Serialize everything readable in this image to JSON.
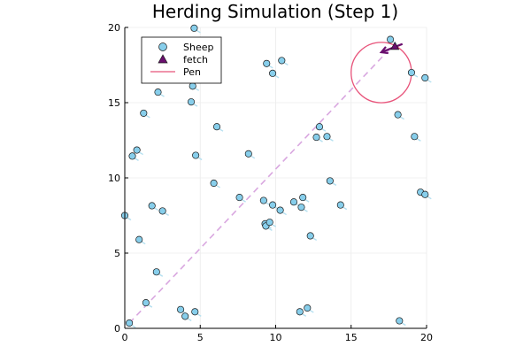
{
  "chart_data": {
    "type": "scatter",
    "title": "Herding Simulation (Step 1)",
    "xlim": [
      0,
      20
    ],
    "ylim": [
      0,
      20
    ],
    "x_ticks": [
      0,
      5,
      10,
      15,
      20
    ],
    "y_ticks": [
      0,
      5,
      10,
      15,
      20
    ],
    "grid": true,
    "legend_position": "top-left",
    "series": [
      {
        "name": "Sheep",
        "marker": "circle",
        "color": "#87CEEB",
        "points": [
          [
            0,
            7.5
          ],
          [
            0.3,
            0.35
          ],
          [
            0.5,
            11.45
          ],
          [
            0.8,
            11.85
          ],
          [
            0.95,
            5.9
          ],
          [
            1.25,
            14.3
          ],
          [
            1.4,
            1.7
          ],
          [
            1.8,
            8.15
          ],
          [
            2.1,
            3.75
          ],
          [
            2.2,
            15.7
          ],
          [
            2.5,
            7.8
          ],
          [
            3.7,
            1.25
          ],
          [
            4.0,
            0.8
          ],
          [
            4.4,
            15.05
          ],
          [
            4.5,
            16.1
          ],
          [
            4.6,
            19.95
          ],
          [
            4.65,
            1.1
          ],
          [
            4.7,
            11.5
          ],
          [
            5.9,
            9.65
          ],
          [
            6.1,
            13.4
          ],
          [
            7.6,
            8.7
          ],
          [
            8.2,
            11.6
          ],
          [
            9.2,
            8.5
          ],
          [
            9.3,
            6.95
          ],
          [
            9.35,
            6.8
          ],
          [
            9.4,
            17.6
          ],
          [
            9.6,
            7.05
          ],
          [
            9.8,
            16.95
          ],
          [
            9.8,
            8.2
          ],
          [
            10.3,
            7.85
          ],
          [
            10.4,
            17.8
          ],
          [
            11.2,
            8.4
          ],
          [
            11.6,
            1.1
          ],
          [
            11.7,
            8.05
          ],
          [
            11.8,
            8.7
          ],
          [
            12.1,
            1.35
          ],
          [
            12.3,
            6.15
          ],
          [
            12.7,
            12.7
          ],
          [
            12.9,
            13.4
          ],
          [
            13.4,
            12.75
          ],
          [
            13.6,
            9.8
          ],
          [
            14.3,
            8.2
          ],
          [
            17.6,
            19.2
          ],
          [
            18.1,
            14.2
          ],
          [
            18.2,
            0.5
          ],
          [
            19.0,
            17.0
          ],
          [
            19.2,
            12.75
          ],
          [
            19.6,
            9.05
          ],
          [
            19.9,
            8.9
          ],
          [
            19.9,
            16.65
          ]
        ]
      },
      {
        "name": "fetch",
        "marker": "triangle",
        "color": "#6A0F6E",
        "points": [
          [
            17.9,
            18.75
          ]
        ]
      },
      {
        "name": "Pen",
        "marker": "line",
        "color": "#E8537A",
        "center": [
          17,
          17
        ],
        "radius": 2
      }
    ],
    "path_line": {
      "from": [
        0.3,
        0.35
      ],
      "to": [
        17.5,
        18.5
      ],
      "color": "#D9A7E0"
    },
    "fetch_arrow": {
      "from": [
        18.4,
        18.9
      ],
      "to": [
        17.0,
        18.35
      ],
      "color": "#6A0F6E"
    }
  }
}
